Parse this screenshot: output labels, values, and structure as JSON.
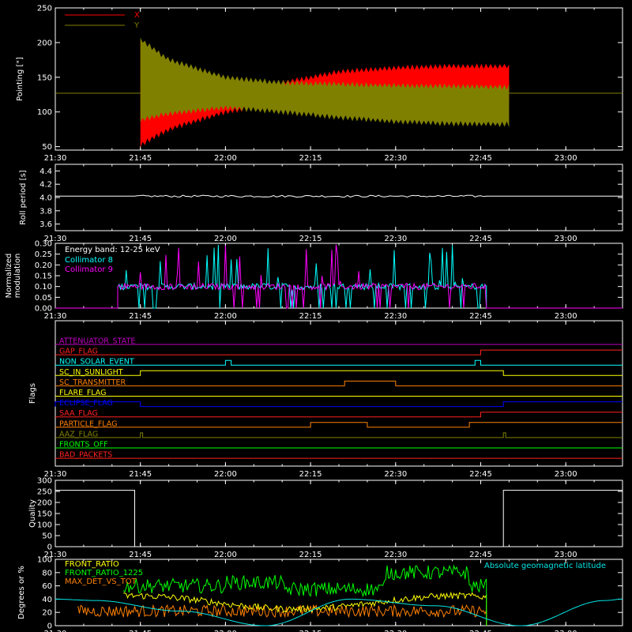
{
  "chart_data": [
    {
      "id": "pointing",
      "type": "area",
      "ylabel": "Pointing [\"]",
      "ylim": [
        45,
        250
      ],
      "yticks": [
        50,
        100,
        150,
        200,
        250
      ],
      "xlim": [
        "21:30",
        "23:10"
      ],
      "xticks": [
        "21:30",
        "21:45",
        "22:00",
        "22:15",
        "22:30",
        "22:45",
        "23:00"
      ],
      "legend_position": "top-left",
      "series": [
        {
          "name": "X",
          "color": "#ff0000",
          "band": {
            "start": "21:45",
            "end": "22:50",
            "x": [
              "21:45",
              "21:50",
              "22:00",
              "22:10",
              "22:20",
              "22:30",
              "22:40",
              "22:50"
            ],
            "upper": [
              200,
              150,
              132,
              142,
              158,
              164,
              166,
              166
            ],
            "lower": [
              52,
              75,
              100,
              112,
              116,
              117,
              118,
              118
            ]
          }
        },
        {
          "name": "Y",
          "color": "#808000",
          "band": {
            "start": "21:45",
            "end": "22:50",
            "x": [
              "21:45",
              "21:50",
              "22:00",
              "22:10",
              "22:20",
              "22:30",
              "22:40",
              "22:50"
            ],
            "upper": [
              205,
              175,
              150,
              142,
              140,
              138,
              137,
              136
            ],
            "lower": [
              88,
              98,
              106,
              100,
              92,
              86,
              83,
              82
            ]
          }
        }
      ],
      "baseline": 127
    },
    {
      "id": "roll",
      "type": "line",
      "ylabel": "Roll period [s]",
      "ylim": [
        3.5,
        4.5
      ],
      "yticks": [
        3.6,
        3.8,
        4.0,
        4.2,
        4.4
      ],
      "xlim": [
        "21:30",
        "23:10"
      ],
      "xticks": [
        "21:30",
        "21:45",
        "22:00",
        "22:15",
        "22:30",
        "22:45",
        "23:00"
      ],
      "series": [
        {
          "name": "",
          "color": "#ffffff",
          "value": 4.02
        }
      ]
    },
    {
      "id": "modulation",
      "type": "bar",
      "ylabel": "Normalized modulation",
      "ylim": [
        0,
        0.3
      ],
      "yticks": [
        0.0,
        0.05,
        0.1,
        0.15,
        0.2,
        0.25,
        0.3
      ],
      "xlim": [
        "21:30",
        "23:10"
      ],
      "xticks": [
        "21:30",
        "21:45",
        "22:00",
        "22:15",
        "22:30",
        "22:45",
        "23:00"
      ],
      "annotation": "Energy band: 12-25 keV",
      "series": [
        {
          "name": "Collimator 8",
          "color": "#00ffff",
          "start": "21:41",
          "end": "22:46",
          "typical": 0.1,
          "max": 0.3
        },
        {
          "name": "Collimator 9",
          "color": "#ff00ff",
          "start": "21:41",
          "end": "22:46",
          "typical": 0.1,
          "max": 0.3
        }
      ]
    },
    {
      "id": "flags",
      "type": "line",
      "ylabel": "Flags",
      "xlim": [
        "21:30",
        "23:10"
      ],
      "xticks": [
        "21:30",
        "21:45",
        "22:00",
        "22:15",
        "22:30",
        "22:45",
        "23:00"
      ],
      "series": [
        {
          "name": "ATTENUATOR_STATE",
          "color": "#c000c0",
          "high": []
        },
        {
          "name": "GAP_FLAG",
          "color": "#ff2020",
          "high": [
            [
              "22:45",
              "23:10"
            ]
          ]
        },
        {
          "name": "NON_SOLAR_EVENT",
          "color": "#00ffff",
          "high": [
            [
              "22:00",
              "22:01"
            ],
            [
              "22:44",
              "22:45"
            ]
          ]
        },
        {
          "name": "SC_IN_SUNLIGHT",
          "color": "#ffff00",
          "high": [
            [
              "21:45",
              "22:49"
            ]
          ]
        },
        {
          "name": "SC_TRANSMITTER",
          "color": "#ff8000",
          "high": [
            [
              "22:21",
              "22:30"
            ]
          ]
        },
        {
          "name": "FLARE_FLAG",
          "color": "#ffff00",
          "high": []
        },
        {
          "name": "ECLIPSE_FLAG",
          "color": "#0000ff",
          "high": [
            [
              "21:30",
              "21:45"
            ],
            [
              "22:49",
              "23:10"
            ]
          ]
        },
        {
          "name": "SAA_FLAG",
          "color": "#ff2020",
          "high": [
            [
              "22:45",
              "23:10"
            ]
          ]
        },
        {
          "name": "PARTICLE_FLAG",
          "color": "#ff8000",
          "high": [
            [
              "22:15",
              "22:25"
            ],
            [
              "22:43",
              "23:10"
            ]
          ]
        },
        {
          "name": "AAZ_FLAG",
          "color": "#808000",
          "high": [
            [
              "21:45",
              "21:45"
            ],
            [
              "22:49",
              "22:49"
            ]
          ]
        },
        {
          "name": "FRONTS_OFF",
          "color": "#00ff00",
          "high": []
        },
        {
          "name": "BAD_PACKETS",
          "color": "#ff2020",
          "high": []
        }
      ]
    },
    {
      "id": "quality",
      "type": "line",
      "ylabel": "Quality",
      "ylim": [
        0,
        300
      ],
      "yticks": [
        0,
        50,
        100,
        150,
        200,
        250,
        300
      ],
      "xlim": [
        "21:30",
        "23:10"
      ],
      "xticks": [
        "21:30",
        "21:45",
        "22:00",
        "22:15",
        "22:30",
        "22:45",
        "23:00"
      ],
      "series": [
        {
          "name": "",
          "color": "#ffffff",
          "x": [
            "21:30",
            "21:44",
            "21:44",
            "21:50",
            "22:49",
            "22:49",
            "23:10"
          ],
          "y": [
            255,
            255,
            0,
            0,
            0,
            255,
            255
          ]
        }
      ]
    },
    {
      "id": "ratios",
      "type": "line",
      "ylabel": "Degrees or %",
      "ylim": [
        0,
        100
      ],
      "yticks": [
        0,
        20,
        40,
        60,
        80,
        100
      ],
      "xlim": [
        "21:30",
        "23:10"
      ],
      "xticks": [
        "21:30",
        "21:45",
        "22:00",
        "22:15",
        "22:30",
        "22:45",
        "23:00"
      ],
      "series": [
        {
          "name": "FRONT_RATIO",
          "color": "#ffff00",
          "start": "21:42",
          "end": "22:46",
          "typical": 35
        },
        {
          "name": "FRONT_RATIO_1225",
          "color": "#00ff00",
          "start": "21:42",
          "end": "22:46",
          "typical": 60
        },
        {
          "name": "MAX_DET_VS_TOT",
          "color": "#ff8000",
          "start": "21:34",
          "end": "22:46",
          "typical": 22
        },
        {
          "name": "Absolute geomagnetic latitude",
          "color": "#00e5e5",
          "x": [
            "21:30",
            "21:37",
            "21:52",
            "22:07",
            "22:22",
            "22:37",
            "22:52",
            "23:07",
            "23:10"
          ],
          "y": [
            40,
            38,
            22,
            0,
            40,
            30,
            0,
            38,
            40
          ]
        }
      ]
    }
  ]
}
